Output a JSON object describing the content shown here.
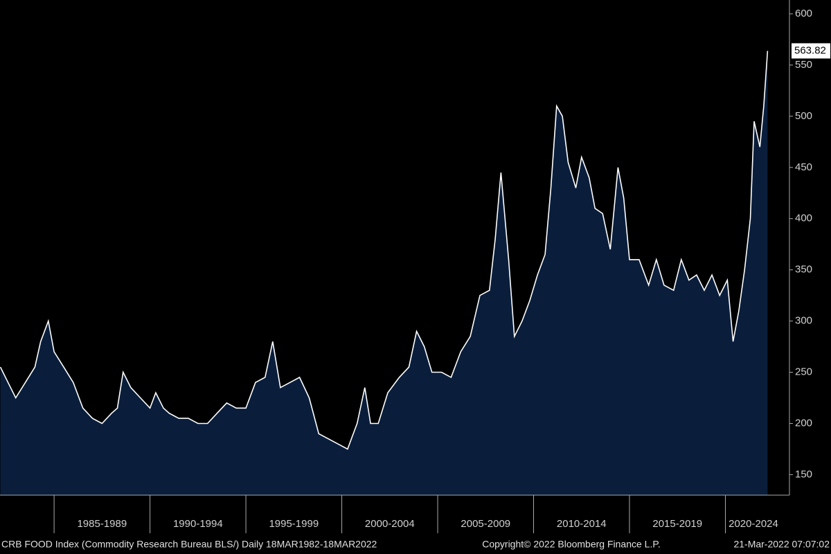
{
  "chart_data": {
    "type": "area",
    "x": [
      1982.2,
      1982.6,
      1983.0,
      1983.5,
      1984.0,
      1984.3,
      1984.7,
      1985.0,
      1985.5,
      1986.0,
      1986.5,
      1987.0,
      1987.5,
      1988.0,
      1988.3,
      1988.6,
      1989.0,
      1989.5,
      1990.0,
      1990.3,
      1990.7,
      1991.0,
      1991.5,
      1992.0,
      1992.5,
      1993.0,
      1993.5,
      1994.0,
      1994.5,
      1995.0,
      1995.5,
      1996.0,
      1996.4,
      1996.8,
      1997.3,
      1997.8,
      1998.3,
      1998.8,
      1999.3,
      1999.8,
      2000.3,
      2000.8,
      2001.2,
      2001.5,
      2001.9,
      2002.4,
      2003.0,
      2003.5,
      2003.9,
      2004.3,
      2004.7,
      2005.2,
      2005.7,
      2006.2,
      2006.7,
      2007.2,
      2007.7,
      2008.0,
      2008.3,
      2008.7,
      2009.0,
      2009.4,
      2009.8,
      2010.2,
      2010.6,
      2010.9,
      2011.2,
      2011.5,
      2011.8,
      2012.2,
      2012.5,
      2012.9,
      2013.2,
      2013.6,
      2014.0,
      2014.4,
      2014.7,
      2015.0,
      2015.5,
      2016.0,
      2016.4,
      2016.8,
      2017.3,
      2017.7,
      2018.1,
      2018.5,
      2018.9,
      2019.3,
      2019.7,
      2020.1,
      2020.4,
      2020.7,
      2021.0,
      2021.3,
      2021.5,
      2021.8,
      2022.0,
      2022.2
    ],
    "series": [
      {
        "color": "#ffffff",
        "fill": "#0a1e3c",
        "values": [
          255,
          240,
          225,
          240,
          255,
          280,
          300,
          270,
          255,
          240,
          215,
          205,
          200,
          210,
          215,
          250,
          235,
          225,
          215,
          230,
          215,
          210,
          205,
          205,
          200,
          200,
          210,
          220,
          215,
          215,
          240,
          245,
          280,
          235,
          240,
          245,
          225,
          190,
          185,
          180,
          175,
          200,
          235,
          200,
          200,
          230,
          245,
          255,
          290,
          275,
          250,
          250,
          245,
          270,
          285,
          325,
          330,
          380,
          445,
          360,
          285,
          300,
          320,
          345,
          365,
          430,
          510,
          500,
          455,
          430,
          460,
          440,
          410,
          405,
          370,
          450,
          420,
          360,
          360,
          335,
          360,
          335,
          330,
          360,
          340,
          345,
          330,
          345,
          325,
          340,
          280,
          310,
          350,
          400,
          495,
          470,
          510,
          563.82
        ]
      }
    ],
    "xlim": [
      1982.18,
      2023.34
    ],
    "xticks": [
      {
        "value": 1985,
        "label": "1985-1989"
      },
      {
        "value": 1990,
        "label": "1990-1994"
      },
      {
        "value": 1995,
        "label": "1995-1999"
      },
      {
        "value": 2000,
        "label": "2000-2004"
      },
      {
        "value": 2005,
        "label": "2005-2009"
      },
      {
        "value": 2010,
        "label": "2010-2014"
      },
      {
        "value": 2015,
        "label": "2015-2019"
      },
      {
        "value": 2020,
        "label": "2020-2024"
      }
    ],
    "ylim": [
      130,
      613.5
    ],
    "yticks": [
      150,
      200,
      250,
      300,
      350,
      400,
      450,
      500,
      550,
      600
    ]
  },
  "footer": {
    "left": "CRB FOOD Index (Commodity Research Bureau BLS/)  Daily 18MAR1982-18MAR2022",
    "center": "Copyright© 2022 Bloomberg Finance L.P.",
    "right": "21-Mar-2022 07:07:02"
  }
}
